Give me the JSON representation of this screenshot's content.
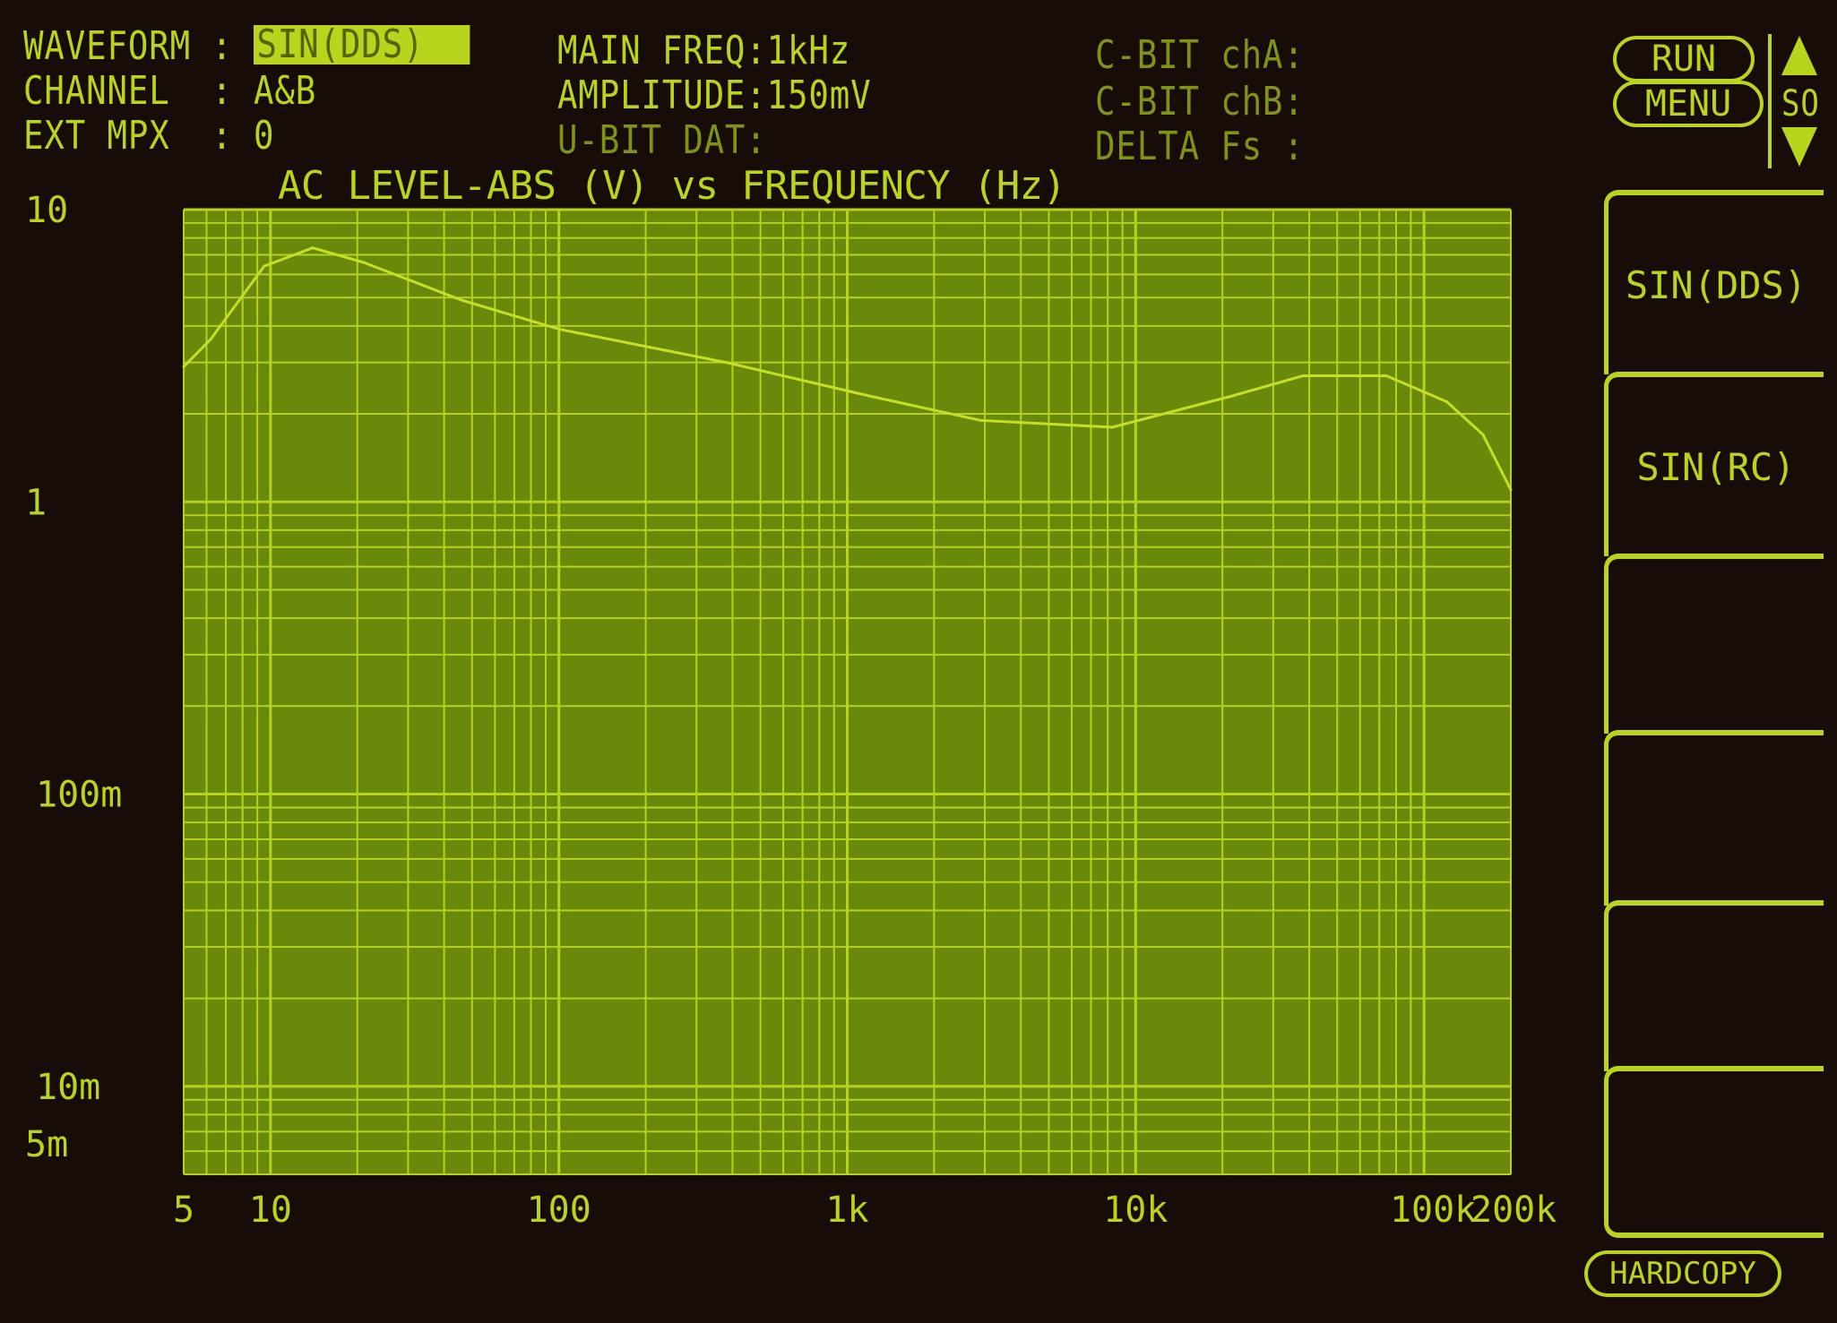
{
  "status": {
    "waveform_label": "WAVEFORM :",
    "waveform_value": "SIN(DDS)",
    "channel_label": "CHANNEL  :",
    "channel_value": "A&B",
    "ext_mpx_label": "EXT MPX  :",
    "ext_mpx_value": "0",
    "main_freq": "MAIN FREQ:1kHz",
    "amplitude": "AMPLITUDE:150mV",
    "ubit": "U-BIT DAT:",
    "cbit_a": "C-BIT chA:",
    "cbit_b": "C-BIT chB:",
    "delta_fs": "DELTA Fs :"
  },
  "controls": {
    "run": "RUN",
    "menu": "MENU",
    "scroll_label": "SO",
    "hardcopy": "HARDCOPY",
    "softkeys": [
      "SIN(DDS)",
      "SIN(RC)",
      "",
      "",
      "",
      ""
    ]
  },
  "colors": {
    "trace": "#c4e024",
    "grid": "#b4d21e",
    "plot_bg": "#6a880a",
    "screen_bg": "#170c07"
  },
  "chart_data": {
    "type": "line",
    "title": "AC LEVEL-ABS (V) vs FREQUENCY (Hz)",
    "x_scale": "log",
    "y_scale": "log",
    "xlim": [
      5,
      200000
    ],
    "ylim": [
      0.005,
      10
    ],
    "x_tick_labels": [
      {
        "value": 5,
        "label": "5"
      },
      {
        "value": 10,
        "label": "10"
      },
      {
        "value": 100,
        "label": "100"
      },
      {
        "value": 1000,
        "label": "1k"
      },
      {
        "value": 10000,
        "label": "10k"
      },
      {
        "value": 100000,
        "label": "100k"
      },
      {
        "value": 200000,
        "label": "200k"
      }
    ],
    "y_tick_labels": [
      {
        "value": 10,
        "label": "10"
      },
      {
        "value": 1,
        "label": "1"
      },
      {
        "value": 0.1,
        "label": "100m"
      },
      {
        "value": 0.01,
        "label": "10m"
      },
      {
        "value": 0.005,
        "label": "5m"
      }
    ],
    "grid": true,
    "series": [
      {
        "x": [
          5,
          6.2,
          9.5,
          14,
          21,
          46,
          100,
          380,
          1200,
          2900,
          8300,
          21500,
          38000,
          74000,
          120000,
          160000,
          200000
        ],
        "y": [
          2.9,
          3.6,
          6.4,
          7.4,
          6.6,
          4.9,
          3.9,
          3.0,
          2.3,
          1.9,
          1.8,
          2.3,
          2.7,
          2.7,
          2.2,
          1.7,
          1.1
        ]
      }
    ]
  }
}
